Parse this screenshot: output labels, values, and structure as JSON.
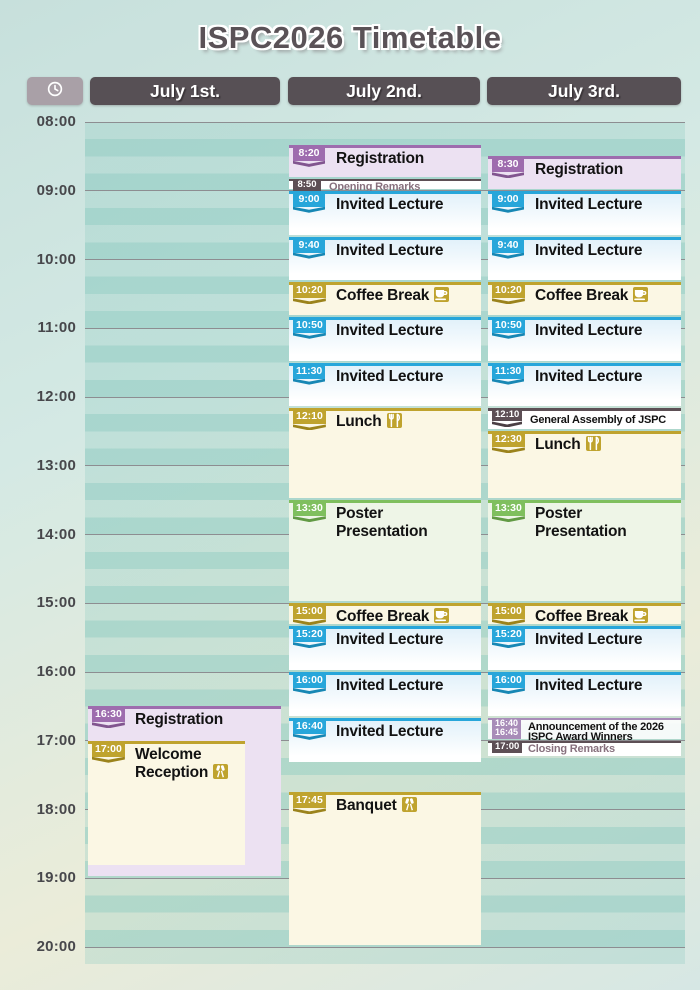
{
  "title": "ISPC2026 Timetable",
  "header": {
    "time_column_icon": "clock-icon",
    "days": [
      {
        "label": "July 1st."
      },
      {
        "label": "July 2nd."
      },
      {
        "label": "July 3rd."
      }
    ]
  },
  "time_axis": {
    "labels": [
      "08:00",
      "09:00",
      "10:00",
      "11:00",
      "12:00",
      "13:00",
      "14:00",
      "15:00",
      "16:00",
      "17:00",
      "18:00",
      "19:00",
      "20:00"
    ]
  },
  "colors": {
    "registration_purple": "#9e6cae",
    "registration_bg": "#ece1f2",
    "lecture_cyan": "#27a6da",
    "lecture_bg": "#e2f1fa",
    "break_gold": "#bfa32e",
    "break_bg": "#fbf7e4",
    "poster_green": "#7fbf5e",
    "poster_bg": "#eef5e7",
    "remark_dark": "#5d4f55",
    "remark_text": "#87707d",
    "announce_purple": "#a88cb8",
    "header_dark": "#575055",
    "stripe_teal": "#8ecbc1"
  },
  "events": [
    {
      "day": 0,
      "start": "16:30",
      "end": "19:00",
      "badge": "16:30",
      "title": "Registration",
      "category": "purple"
    },
    {
      "day": 0,
      "start": "17:00",
      "end": "18:50",
      "badge": "17:00",
      "title": "Welcome Reception",
      "category": "gold",
      "icon": "champagne-icon",
      "width": 157
    },
    {
      "day": 1,
      "start": "8:20",
      "end": "8:50",
      "badge": "8:20",
      "title": "Registration",
      "category": "purple"
    },
    {
      "day": 1,
      "start": "8:50",
      "end": "9:00",
      "badge": "8:50",
      "title": "Opening Remarks",
      "category": "remark"
    },
    {
      "day": 1,
      "start": "9:00",
      "end": "9:40",
      "badge": "9:00",
      "title": "Invited Lecture",
      "category": "cyan"
    },
    {
      "day": 1,
      "start": "9:40",
      "end": "10:20",
      "badge": "9:40",
      "title": "Invited Lecture",
      "category": "cyan"
    },
    {
      "day": 1,
      "start": "10:20",
      "end": "10:50",
      "badge": "10:20",
      "title": "Coffee Break",
      "category": "gold",
      "icon": "coffee-cup-icon"
    },
    {
      "day": 1,
      "start": "10:50",
      "end": "11:30",
      "badge": "10:50",
      "title": "Invited Lecture",
      "category": "cyan"
    },
    {
      "day": 1,
      "start": "11:30",
      "end": "12:10",
      "badge": "11:30",
      "title": "Invited Lecture",
      "category": "cyan"
    },
    {
      "day": 1,
      "start": "12:10",
      "end": "13:30",
      "badge": "12:10",
      "title": "Lunch",
      "category": "gold",
      "icon": "cutlery-icon"
    },
    {
      "day": 1,
      "start": "13:30",
      "end": "15:00",
      "badge": "13:30",
      "title": "Poster Presentation",
      "category": "green"
    },
    {
      "day": 1,
      "start": "15:00",
      "end": "15:20",
      "badge": "15:00",
      "title": "Coffee Break",
      "category": "gold",
      "icon": "coffee-cup-icon"
    },
    {
      "day": 1,
      "start": "15:20",
      "end": "16:00",
      "badge": "15:20",
      "title": "Invited Lecture",
      "category": "cyan"
    },
    {
      "day": 1,
      "start": "16:00",
      "end": "16:40",
      "badge": "16:00",
      "title": "Invited Lecture",
      "category": "cyan"
    },
    {
      "day": 1,
      "start": "16:40",
      "end": "17:20",
      "badge": "16:40",
      "title": "Invited Lecture",
      "category": "cyan"
    },
    {
      "day": 1,
      "start": "17:45",
      "end": "20:00",
      "badge": "17:45",
      "title": "Banquet",
      "category": "gold",
      "icon": "champagne-icon"
    },
    {
      "day": 2,
      "start": "8:30",
      "end": "9:00",
      "badge": "8:30",
      "title": "Registration",
      "category": "purple"
    },
    {
      "day": 2,
      "start": "9:00",
      "end": "9:40",
      "badge": "9:00",
      "title": "Invited Lecture",
      "category": "cyan"
    },
    {
      "day": 2,
      "start": "9:40",
      "end": "10:20",
      "badge": "9:40",
      "title": "Invited Lecture",
      "category": "cyan"
    },
    {
      "day": 2,
      "start": "10:20",
      "end": "10:50",
      "badge": "10:20",
      "title": "Coffee Break",
      "category": "gold",
      "icon": "coffee-cup-icon"
    },
    {
      "day": 2,
      "start": "10:50",
      "end": "11:30",
      "badge": "10:50",
      "title": "Invited Lecture",
      "category": "cyan"
    },
    {
      "day": 2,
      "start": "11:30",
      "end": "12:10",
      "badge": "11:30",
      "title": "Invited Lecture",
      "category": "cyan"
    },
    {
      "day": 2,
      "start": "12:10",
      "end": "12:30",
      "badge": "12:10",
      "title": "General Assembly of JSPC",
      "category": "assembly"
    },
    {
      "day": 2,
      "start": "12:30",
      "end": "13:30",
      "badge": "12:30",
      "title": "Lunch",
      "category": "gold",
      "icon": "cutlery-icon"
    },
    {
      "day": 2,
      "start": "13:30",
      "end": "15:00",
      "badge": "13:30",
      "title": "Poster Presentation",
      "category": "green"
    },
    {
      "day": 2,
      "start": "15:00",
      "end": "15:20",
      "badge": "15:00",
      "title": "Coffee Break",
      "category": "gold",
      "icon": "coffee-cup-icon"
    },
    {
      "day": 2,
      "start": "15:20",
      "end": "16:00",
      "badge": "15:20",
      "title": "Invited Lecture",
      "category": "cyan"
    },
    {
      "day": 2,
      "start": "16:00",
      "end": "16:40",
      "badge": "16:00",
      "title": "Invited Lecture",
      "category": "cyan"
    },
    {
      "day": 2,
      "start": "16:40",
      "end": "17:00",
      "badge": "16:40\n16:45",
      "title": "Announcement of the 2026 ISPC Award Winners",
      "category": "announce"
    },
    {
      "day": 2,
      "start": "17:00",
      "end": "17:15",
      "badge": "17:00",
      "title": "Closing Remarks",
      "category": "remark"
    }
  ]
}
